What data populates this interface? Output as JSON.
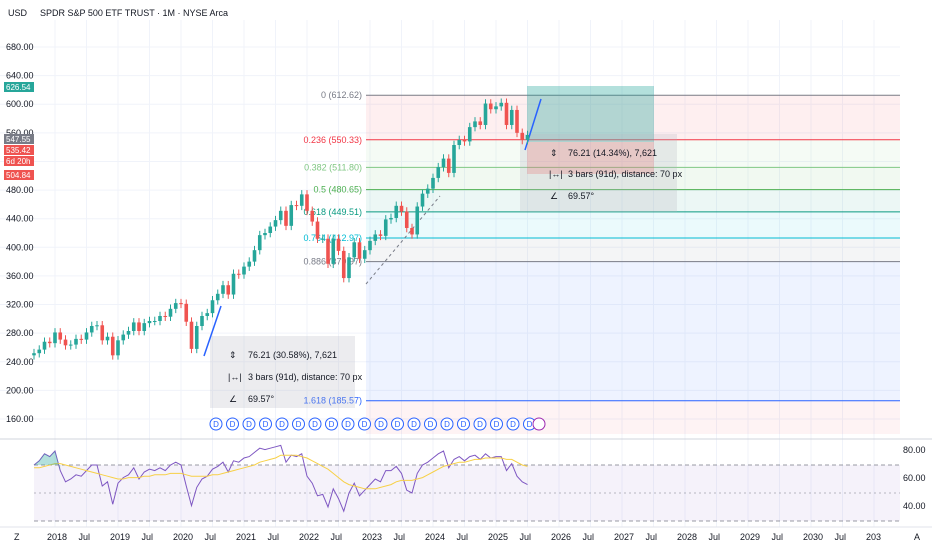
{
  "header": {
    "currency": "USD",
    "title": "SPDR S&P 500 ETF TRUST · 1M · NYSE Arca"
  },
  "colors": {
    "up": "#26a69a",
    "down": "#ef5350",
    "grid": "#f0f3fa",
    "rsi_line": "#7e57c2",
    "rsi_ma": "#f7d046",
    "fib_line_blue": "#2962ff"
  },
  "price_badges": [
    {
      "text": "626.54",
      "color": "#26a69a"
    },
    {
      "text": "547.55",
      "color": "#787b86"
    },
    {
      "text": "535.42",
      "color": "#ef5350"
    },
    {
      "text": "6d 20h",
      "color": "#ef5350"
    },
    {
      "text": "504.84",
      "color": "#ef5350"
    }
  ],
  "rsi_axis": [
    "80.00",
    "60.00",
    "40.00"
  ],
  "bottom_bar": {
    "left": "Z",
    "right": "A"
  },
  "fib_levels": [
    {
      "label": "0 (612.62)",
      "price": 612.62,
      "color": "#787b86"
    },
    {
      "label": "0.236 (550.33)",
      "price": 550.33,
      "color": "#f23645"
    },
    {
      "label": "0.382 (511.80)",
      "price": 511.8,
      "color": "#81c784"
    },
    {
      "label": "0.5 (480.65)",
      "price": 480.65,
      "color": "#4caf50"
    },
    {
      "label": "0.618 (449.51)",
      "price": 449.51,
      "color": "#089981"
    },
    {
      "label": "0.764 (412.97)",
      "price": 412.97,
      "color": "#00bcd4"
    },
    {
      "label": "0.886 (379.97)",
      "price": 379.97,
      "color": "#787b86"
    },
    {
      "label": "1.618 (185.57)",
      "price": 185.57,
      "color": "#2962ff"
    }
  ],
  "measure_tool_lower": {
    "change": "76.21 (30.58%), 7,621",
    "bars": "3 bars (91d), distance: 70 px",
    "angle": "69.57°"
  },
  "measure_tool_upper": {
    "change": "76.21 (14.34%), 7,621",
    "bars": "3 bars (91d), distance: 70 px",
    "angle": "69.57°"
  },
  "dividend_marker": "D",
  "chart_data": [
    {
      "type": "candlestick",
      "title": "SPDR S&P 500 ETF TRUST · 1M · NYSE Arca",
      "ylabel": "USD",
      "ylim": [
        140,
        700
      ],
      "y_ticks": [
        "160.00",
        "200.00",
        "240.00",
        "280.00",
        "320.00",
        "360.00",
        "400.00",
        "440.00",
        "480.00",
        "520.00",
        "560.00",
        "600.00",
        "640.00",
        "680.00"
      ],
      "x_ticks": [
        "2018",
        "Jul",
        "2019",
        "Jul",
        "2020",
        "Jul",
        "2021",
        "Jul",
        "2022",
        "Jul",
        "2023",
        "Jul",
        "2024",
        "Jul",
        "2025",
        "Jul",
        "2026",
        "Jul",
        "2027",
        "Jul",
        "2028",
        "Jul",
        "2029",
        "Jul",
        "2030",
        "Jul",
        "203"
      ],
      "x_start": "2017-09",
      "series": [
        {
          "close": [
            252,
            257,
            268,
            266,
            281,
            271,
            263,
            264,
            272,
            271,
            281,
            290,
            291,
            270,
            275,
            249,
            270,
            278,
            283,
            295,
            283,
            294,
            297,
            297,
            304,
            303,
            314,
            322,
            321,
            296,
            258,
            290,
            304,
            308,
            326,
            335,
            347,
            334,
            363,
            362,
            373,
            380,
            396,
            417,
            420,
            429,
            438,
            451,
            430,
            459,
            458,
            474,
            451,
            436,
            412,
            412,
            377,
            412,
            395,
            357,
            386,
            407,
            384,
            396,
            409,
            418,
            416,
            439,
            441,
            458,
            450,
            427,
            418,
            457,
            475,
            482,
            497,
            512,
            524,
            504,
            543,
            550,
            548,
            568,
            576,
            571,
            601,
            593,
            597,
            602,
            571,
            592,
            560,
            550,
            557
          ],
          "open": [
            249,
            252,
            257,
            268,
            266,
            281,
            271,
            263,
            264,
            272,
            271,
            281,
            290,
            291,
            270,
            275,
            249,
            270,
            278,
            283,
            295,
            283,
            294,
            297,
            297,
            304,
            303,
            314,
            322,
            321,
            296,
            258,
            290,
            304,
            308,
            326,
            335,
            347,
            334,
            363,
            362,
            373,
            380,
            396,
            417,
            420,
            429,
            438,
            451,
            430,
            459,
            458,
            474,
            451,
            436,
            412,
            412,
            377,
            412,
            395,
            357,
            386,
            407,
            384,
            396,
            409,
            418,
            416,
            439,
            441,
            458,
            450,
            427,
            418,
            457,
            475,
            482,
            497,
            512,
            524,
            504,
            543,
            550,
            548,
            568,
            576,
            571,
            601,
            593,
            597,
            602,
            571,
            592,
            560,
            550
          ]
        }
      ]
    },
    {
      "type": "line",
      "title": "RSI",
      "ylim": [
        30,
        90
      ],
      "y_ticks": [
        "80.00",
        "60.00",
        "40.00"
      ],
      "series": [
        {
          "name": "RSI",
          "values": [
            70,
            73,
            78,
            76,
            80,
            66,
            58,
            60,
            63,
            62,
            66,
            70,
            70,
            55,
            58,
            42,
            57,
            61,
            63,
            68,
            60,
            65,
            67,
            66,
            68,
            66,
            70,
            72,
            70,
            55,
            41,
            54,
            60,
            62,
            67,
            69,
            72,
            65,
            73,
            72,
            75,
            76,
            79,
            82,
            81,
            82,
            83,
            84,
            72,
            77,
            76,
            78,
            62,
            57,
            48,
            49,
            40,
            53,
            46,
            37,
            50,
            57,
            48,
            52,
            56,
            60,
            58,
            66,
            66,
            69,
            64,
            52,
            50,
            64,
            70,
            72,
            75,
            78,
            80,
            68,
            74,
            76,
            73,
            76,
            77,
            74,
            78,
            75,
            76,
            76,
            66,
            71,
            62,
            58,
            56
          ]
        },
        {
          "name": "RSI MA",
          "values": [
            68,
            68,
            69,
            70,
            71,
            71,
            70,
            69,
            68,
            67,
            66,
            65,
            64,
            63,
            62,
            61,
            60,
            60,
            61,
            61,
            61,
            62,
            62,
            63,
            63,
            63,
            64,
            64,
            64,
            63,
            62,
            62,
            62,
            62,
            63,
            63,
            64,
            65,
            66,
            67,
            68,
            69,
            70,
            72,
            73,
            74,
            75,
            77,
            77,
            77,
            77,
            76,
            75,
            73,
            71,
            69,
            67,
            64,
            61,
            58,
            56,
            55,
            54,
            53,
            53,
            53,
            54,
            55,
            56,
            58,
            59,
            59,
            59,
            60,
            61,
            63,
            65,
            67,
            69,
            70,
            71,
            72,
            72,
            73,
            74,
            74,
            75,
            75,
            75,
            75,
            74,
            74,
            72,
            70,
            69
          ]
        }
      ]
    }
  ]
}
